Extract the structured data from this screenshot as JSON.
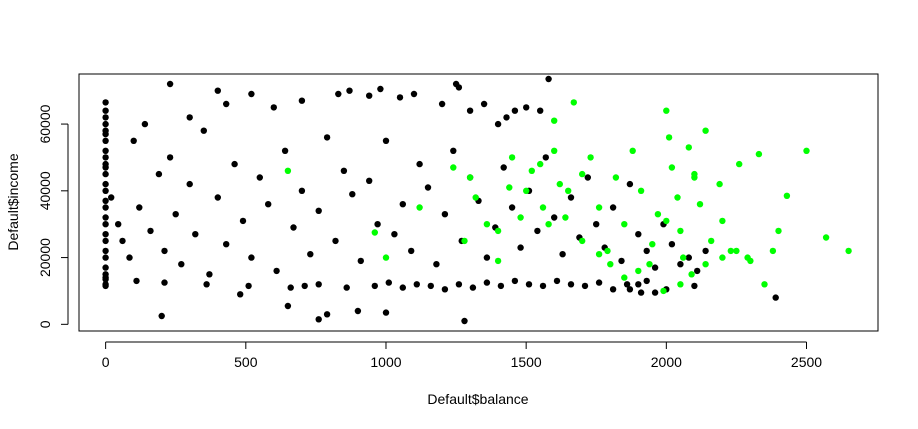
{
  "chart_data": {
    "type": "scatter",
    "title": "",
    "xlabel": "Default$balance",
    "ylabel": "Default$income",
    "xlim": [
      -95,
      2755
    ],
    "ylim": [
      -2000,
      75000
    ],
    "x_ticks": [
      0,
      500,
      1000,
      1500,
      2000,
      2500
    ],
    "y_ticks": [
      0,
      20000,
      40000,
      60000
    ],
    "x_tick_labels": [
      "0",
      "500",
      "1000",
      "1500",
      "2000",
      "2500"
    ],
    "y_tick_labels": [
      "0",
      "20000",
      "40000",
      "60000"
    ],
    "grid": false,
    "legend": "none",
    "colors": {
      "No": "#000000",
      "Yes": "#00ff00"
    },
    "series": [
      {
        "color": "#000000",
        "x": [
          0,
          0,
          0,
          0,
          0,
          0,
          0,
          0,
          0,
          0,
          0,
          0,
          0,
          0,
          0,
          0,
          0,
          0,
          0,
          0,
          0,
          0,
          0,
          0,
          0,
          0,
          0,
          0,
          20,
          45,
          60,
          85,
          100,
          120,
          140,
          160,
          190,
          210,
          230,
          250,
          270,
          300,
          320,
          350,
          370,
          400,
          430,
          460,
          490,
          520,
          550,
          580,
          610,
          640,
          670,
          700,
          730,
          760,
          790,
          820,
          850,
          880,
          910,
          940,
          970,
          1000,
          1030,
          1060,
          1090,
          1120,
          1150,
          1180,
          1210,
          1240,
          1270,
          1300,
          1330,
          1360,
          1390,
          1420,
          1450,
          1480,
          1510,
          1540,
          1570,
          1600,
          1630,
          1660,
          1690,
          1720,
          1750,
          1780,
          1810,
          1840,
          1870,
          1900,
          1930,
          1960,
          1990,
          2020,
          2050,
          2080,
          2110,
          2140,
          200,
          230,
          300,
          400,
          430,
          480,
          520,
          600,
          650,
          700,
          760,
          790,
          830,
          870,
          900,
          940,
          980,
          1000,
          1050,
          1100,
          1200,
          1250,
          1260,
          1280,
          1300,
          1350,
          1400,
          1430,
          1460,
          1500,
          1550,
          1580,
          110,
          210,
          360,
          510,
          660,
          710,
          760,
          860,
          960,
          1010,
          1060,
          1110,
          1160,
          1210,
          1260,
          1310,
          1360,
          1410,
          1460,
          1510,
          1560,
          1610,
          1660,
          1710,
          1760,
          1810,
          1860,
          1910,
          2390,
          2100,
          2000,
          1960,
          1930,
          1900,
          1870
        ],
        "y": [
          66500,
          64000,
          60000,
          55000,
          50000,
          45000,
          40000,
          35000,
          30000,
          25000,
          20000,
          15000,
          12000,
          13500,
          62000,
          58000,
          52000,
          47000,
          42000,
          37000,
          32000,
          27000,
          22000,
          17000,
          14000,
          11500,
          57000,
          48000,
          38000,
          30000,
          25000,
          20000,
          55000,
          35000,
          60000,
          28000,
          45000,
          22000,
          50000,
          33000,
          18000,
          42000,
          27000,
          58000,
          15000,
          38000,
          24000,
          48000,
          31000,
          20000,
          44000,
          36000,
          16000,
          52000,
          29000,
          40000,
          21000,
          34000,
          56000,
          25000,
          46000,
          39000,
          19000,
          43000,
          30000,
          55000,
          27000,
          36000,
          22000,
          48000,
          41000,
          18000,
          33000,
          52000,
          25000,
          44000,
          37000,
          20000,
          29000,
          47000,
          35000,
          23000,
          40000,
          28000,
          50000,
          32000,
          21000,
          38000,
          26000,
          44000,
          30000,
          23000,
          35000,
          19000,
          42000,
          27000,
          22000,
          17000,
          30000,
          24000,
          18000,
          20000,
          16000,
          22000,
          2500,
          72000,
          62000,
          70000,
          66000,
          9000,
          69000,
          65000,
          5500,
          67000,
          1500,
          3000,
          69000,
          70000,
          4000,
          68500,
          70500,
          3500,
          68000,
          69000,
          66000,
          72000,
          71000,
          1000,
          64000,
          66000,
          60000,
          62000,
          64000,
          65000,
          64000,
          73500,
          13000,
          12500,
          12000,
          11500,
          11000,
          11500,
          12000,
          11000,
          11500,
          12500,
          11000,
          12000,
          11500,
          10500,
          12000,
          11000,
          12500,
          11500,
          13000,
          12000,
          11500,
          13000,
          12000,
          11500,
          12500,
          10500,
          12000,
          9500,
          8000,
          11500,
          10500,
          9500,
          13000,
          12000,
          10500
        ]
      },
      {
        "color": "#00ff00",
        "x": [
          650,
          960,
          1000,
          1120,
          1300,
          1400,
          1450,
          1500,
          1550,
          1580,
          1600,
          1620,
          1640,
          1670,
          1700,
          1730,
          1760,
          1790,
          1820,
          1850,
          1880,
          1910,
          1940,
          1970,
          2000,
          2010,
          2020,
          2040,
          2050,
          2060,
          2080,
          2100,
          2120,
          2140,
          2160,
          2190,
          2200,
          2230,
          2260,
          2290,
          2300,
          2330,
          2350,
          2380,
          2400,
          2430,
          2500,
          2570,
          2650,
          2050,
          2090,
          1990,
          1900,
          1850,
          1800,
          1760,
          2140,
          2200,
          2250,
          2100,
          2000,
          1950,
          1700,
          1650,
          1600,
          1560,
          1520,
          1480,
          1440,
          1400,
          1360,
          1320,
          1280,
          1240
        ],
        "y": [
          46000,
          27500,
          20000,
          35000,
          44000,
          28000,
          50000,
          40000,
          48000,
          30000,
          61000,
          42000,
          32000,
          66500,
          25000,
          50000,
          35000,
          22000,
          44000,
          30000,
          52000,
          40000,
          18000,
          33000,
          64000,
          56000,
          47000,
          38000,
          28000,
          20000,
          53000,
          45000,
          36000,
          58000,
          25000,
          42000,
          31000,
          22000,
          48000,
          20000,
          19000,
          51000,
          12000,
          22000,
          28000,
          38500,
          52000,
          26000,
          22000,
          12000,
          15000,
          10000,
          16000,
          14000,
          18000,
          21000,
          18000,
          20000,
          22000,
          44000,
          31000,
          24000,
          45000,
          40000,
          52000,
          35000,
          46000,
          32000,
          41000,
          19000,
          30000,
          38000,
          25000,
          47000
        ]
      }
    ]
  }
}
